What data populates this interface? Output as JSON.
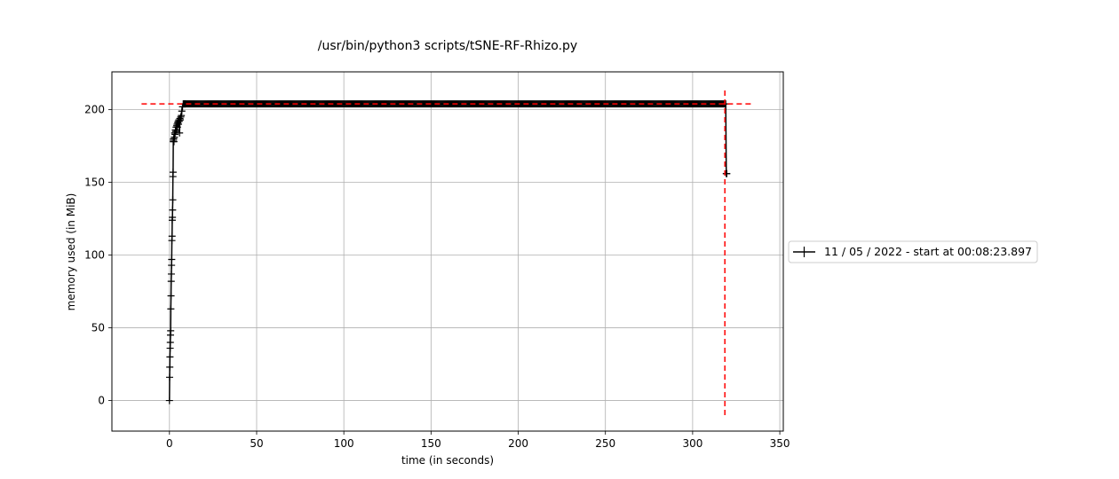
{
  "chart_data": {
    "type": "line",
    "title": "/usr/bin/python3 scripts/tSNE-RF-Rhizo.py",
    "xlabel": "time (in seconds)",
    "ylabel": "memory used (in MiB)",
    "xlim": [
      -33,
      352
    ],
    "ylim": [
      -21,
      226
    ],
    "xticks": [
      0,
      50,
      100,
      150,
      200,
      250,
      300,
      350
    ],
    "yticks": [
      0,
      50,
      100,
      150,
      200
    ],
    "grid": true,
    "legend_position": "outside-right",
    "colors": {
      "series": "#000000",
      "marker_lines": "#ff0000",
      "grid": "#b0b0b0"
    },
    "series": [
      {
        "name": "11 / 05 / 2022 - start at 00:08:23.897",
        "x": [
          0.0,
          0.1,
          0.2,
          0.3,
          0.4,
          0.5,
          0.6,
          0.7,
          0.8,
          0.9,
          1.0,
          1.1,
          1.2,
          1.3,
          1.4,
          1.5,
          1.6,
          1.7,
          1.8,
          1.9,
          2.0,
          2.1,
          2.2,
          2.3,
          2.4,
          2.6,
          2.8,
          3.0,
          3.2,
          3.4,
          3.6,
          3.8,
          4.0,
          4.2,
          4.4,
          4.6,
          4.8,
          5.0,
          5.2,
          5.4,
          5.6,
          5.8,
          6.0,
          6.2,
          6.5,
          6.8,
          7.1,
          7.5,
          7.9,
          8.3,
          8.7,
          9.1,
          319.0,
          319.3,
          319.6
        ],
        "y": [
          0,
          16,
          23,
          30,
          36,
          40,
          45,
          48,
          63,
          72,
          82,
          87,
          93,
          97,
          110,
          113,
          124,
          126,
          131,
          138,
          154,
          157,
          178,
          179,
          180,
          178,
          181,
          184,
          183,
          186,
          185,
          188,
          186,
          189,
          190,
          188,
          191,
          192,
          190,
          193,
          192,
          184,
          194,
          193,
          195,
          196,
          199,
          202,
          204,
          204,
          204,
          204,
          204,
          156,
          156
        ]
      }
    ],
    "annotations": [
      {
        "type": "hline",
        "y": 204,
        "x_from": -16,
        "x_to": 335,
        "style": "dashed",
        "color": "#ff0000"
      },
      {
        "type": "vline",
        "x": 318.5,
        "y_from": -10,
        "y_to": 214,
        "style": "dashed",
        "color": "#ff0000"
      }
    ]
  }
}
